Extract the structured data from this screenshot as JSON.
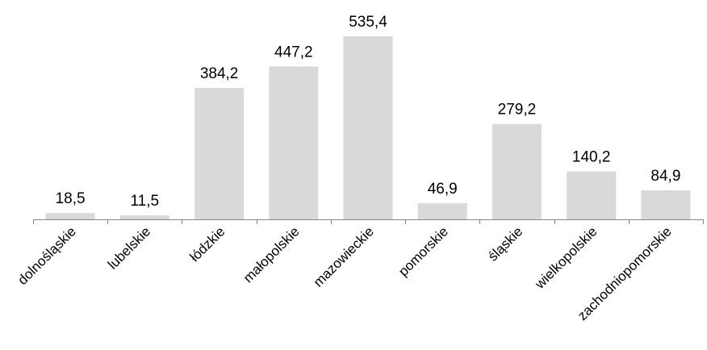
{
  "chart_data": {
    "type": "bar",
    "categories": [
      "dolnośląskie",
      "lubelskie",
      "łódzkie",
      "małopolskie",
      "mazowieckie",
      "pomorskie",
      "śląskie",
      "wielkopolskie",
      "zachodniopomorskie"
    ],
    "values": [
      18.5,
      11.5,
      384.2,
      447.2,
      535.4,
      46.9,
      279.2,
      140.2,
      84.9
    ],
    "data_labels": [
      "18,5",
      "11,5",
      "384,2",
      "447,2",
      "535,4",
      "46,9",
      "279,2",
      "140,2",
      "84,9"
    ],
    "ylim": [
      0,
      535.4
    ],
    "grid": false,
    "legend": "none",
    "colors": {
      "bar": "#d9d9d9",
      "axis": "#868686",
      "text": "#000000"
    }
  }
}
